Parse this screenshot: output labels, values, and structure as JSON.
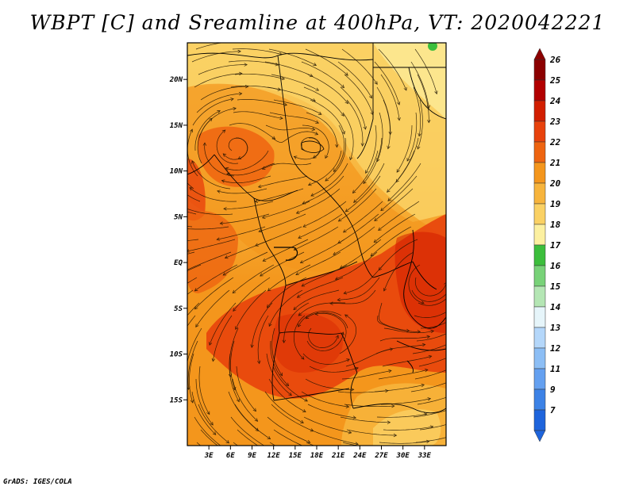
{
  "title": "WBPT [C] and Sreamline at 400hPa, VT: 2020042221",
  "credit": "GrADS: IGES/COLA",
  "map": {
    "lon_range": [
      0,
      36
    ],
    "lat_range": [
      -20,
      24
    ],
    "lat_ticks": [
      {
        "value": 20,
        "label": "20N"
      },
      {
        "value": 15,
        "label": "15N"
      },
      {
        "value": 10,
        "label": "10N"
      },
      {
        "value": 5,
        "label": "5N"
      },
      {
        "value": 0,
        "label": "EQ"
      },
      {
        "value": -5,
        "label": "5S"
      },
      {
        "value": -10,
        "label": "10S"
      },
      {
        "value": -15,
        "label": "15S"
      }
    ],
    "lon_ticks": [
      {
        "value": 3,
        "label": "3E"
      },
      {
        "value": 6,
        "label": "6E"
      },
      {
        "value": 9,
        "label": "9E"
      },
      {
        "value": 12,
        "label": "12E"
      },
      {
        "value": 15,
        "label": "15E"
      },
      {
        "value": 18,
        "label": "18E"
      },
      {
        "value": 21,
        "label": "21E"
      },
      {
        "value": 24,
        "label": "24E"
      },
      {
        "value": 27,
        "label": "27E"
      },
      {
        "value": 30,
        "label": "30E"
      },
      {
        "value": 33,
        "label": "33E"
      }
    ]
  },
  "colorbar": {
    "levels": [
      {
        "label": "26",
        "color": "#8c0000"
      },
      {
        "label": "25",
        "color": "#b20000"
      },
      {
        "label": "24",
        "color": "#d21e00"
      },
      {
        "label": "23",
        "color": "#e8420c"
      },
      {
        "label": "22",
        "color": "#ee6410"
      },
      {
        "label": "21",
        "color": "#f4961c"
      },
      {
        "label": "20",
        "color": "#f7b43c"
      },
      {
        "label": "19",
        "color": "#fad164"
      },
      {
        "label": "18",
        "color": "#fcf0a0"
      },
      {
        "label": "17",
        "color": "#3cbe3c"
      },
      {
        "label": "16",
        "color": "#78d278"
      },
      {
        "label": "15",
        "color": "#b4e6b4"
      },
      {
        "label": "14",
        "color": "#e6f5fa"
      },
      {
        "label": "13",
        "color": "#b4d7fa"
      },
      {
        "label": "12",
        "color": "#8cbef5"
      },
      {
        "label": "11",
        "color": "#64a0f0"
      },
      {
        "label": "9",
        "color": "#3c82e6"
      },
      {
        "label": "7",
        "color": "#1e64dc"
      }
    ]
  }
}
